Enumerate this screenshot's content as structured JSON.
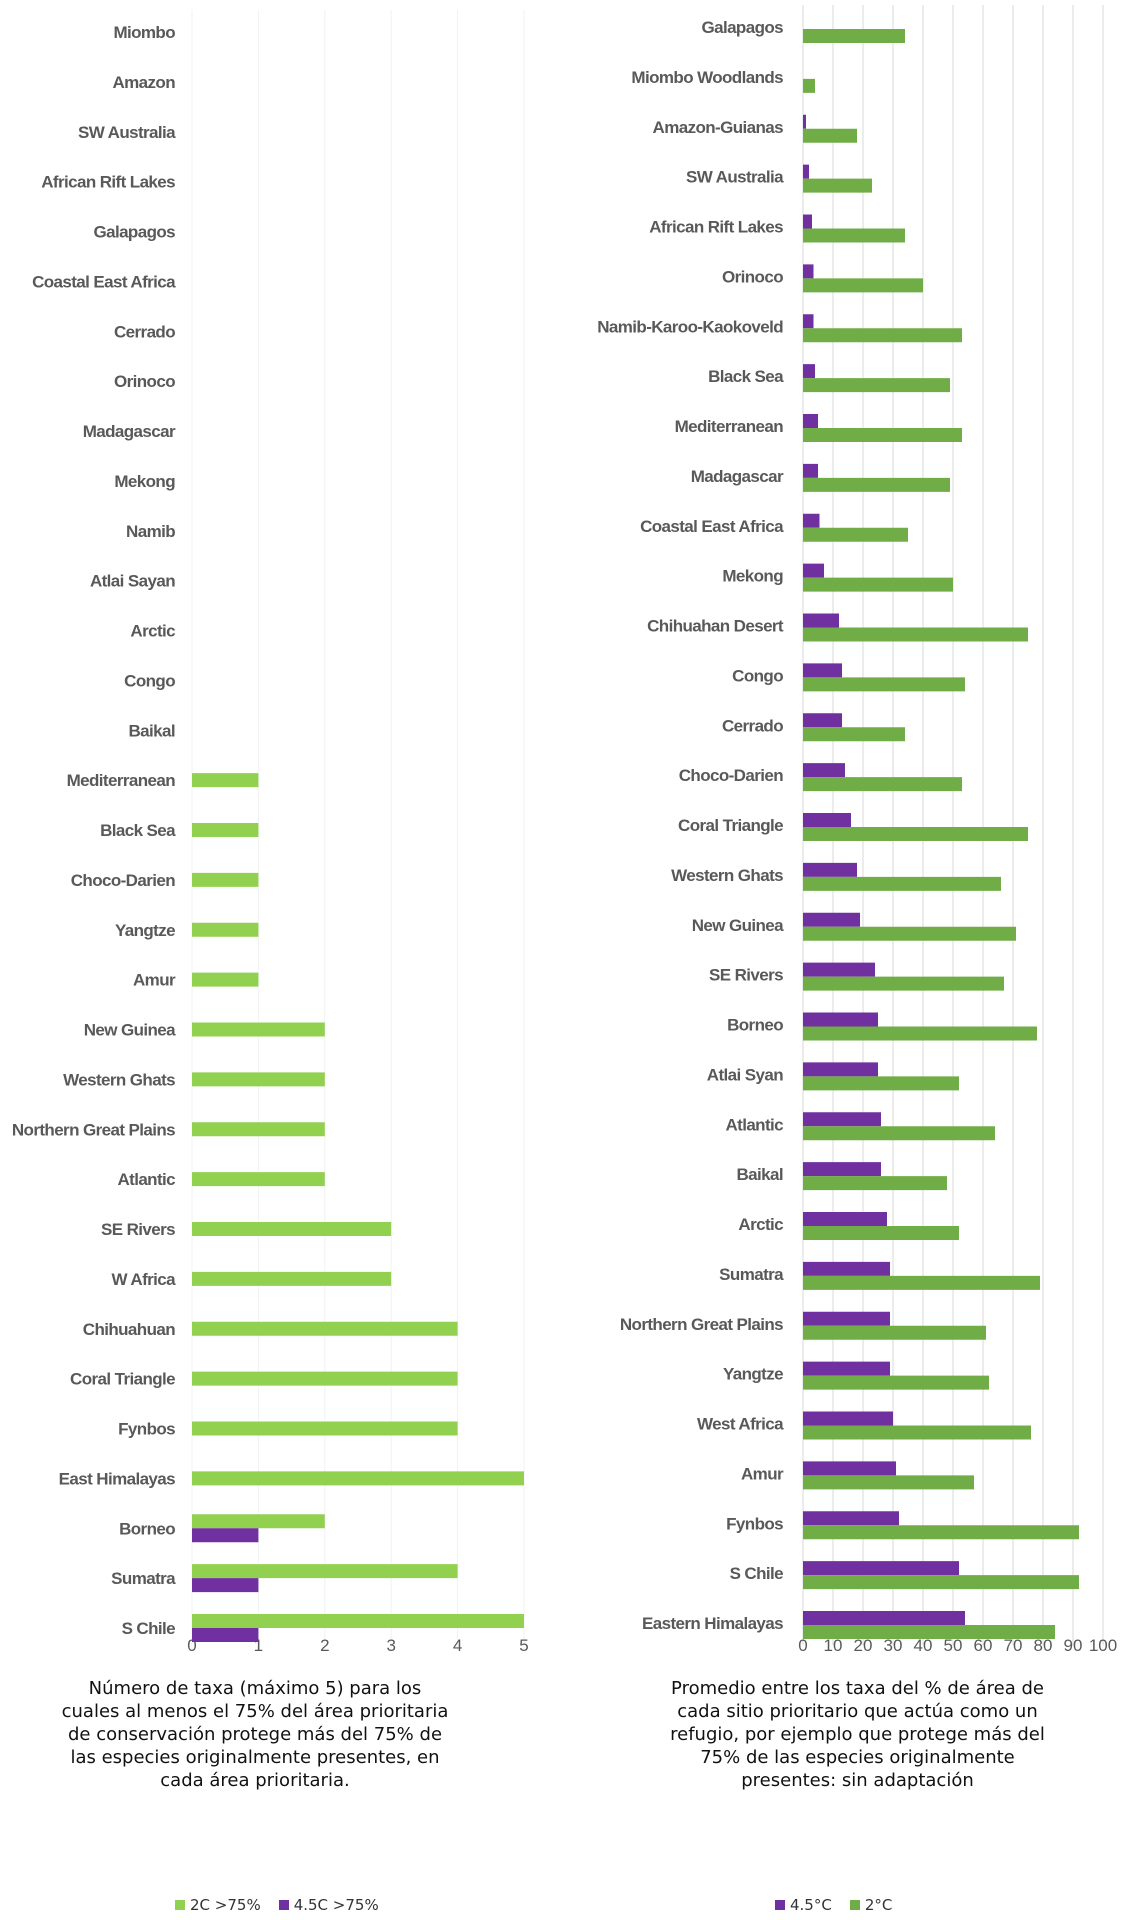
{
  "chart_data": [
    {
      "type": "bar",
      "orientation": "horizontal",
      "categories": [
        "Miombo",
        "Amazon",
        "SW Australia",
        "African Rift Lakes",
        "Galapagos",
        "Coastal East Africa",
        "Cerrado",
        "Orinoco",
        "Madagascar",
        "Mekong",
        "Namib",
        "Atlai Sayan",
        "Arctic",
        "Congo",
        "Baikal",
        "Mediterranean",
        "Black Sea",
        "Choco-Darien",
        "Yangtze",
        "Amur",
        "New Guinea",
        "Western Ghats",
        "Northern Great Plains",
        "Atlantic",
        "SE Rivers",
        "W Africa",
        "Chihuahuan",
        "Coral Triangle",
        "Fynbos",
        "East Himalayas",
        "Borneo",
        "Sumatra",
        "S Chile"
      ],
      "series": [
        {
          "name": "2C >75%",
          "color": "#92d050",
          "values": [
            0,
            0,
            0,
            0,
            0,
            0,
            0,
            0,
            0,
            0,
            0,
            0,
            0,
            0,
            0,
            1,
            1,
            1,
            1,
            1,
            2,
            2,
            2,
            2,
            3,
            3,
            4,
            4,
            4,
            5,
            2,
            4,
            5
          ]
        },
        {
          "name": "4.5C >75%",
          "color": "#7030a0",
          "values": [
            0,
            0,
            0,
            0,
            0,
            0,
            0,
            0,
            0,
            0,
            0,
            0,
            0,
            0,
            0,
            0,
            0,
            0,
            0,
            0,
            0,
            0,
            0,
            0,
            0,
            0,
            0,
            0,
            0,
            0,
            1,
            1,
            1
          ]
        }
      ],
      "xlim": [
        0,
        5
      ],
      "xticks": [
        "0",
        "1",
        "2",
        "3",
        "4",
        "5"
      ],
      "xlabel": "Número de taxa (máximo 5) para los cuales al menos el 75% del área prioritaria de conservación protege más del 75% de las especies originalmente presentes, en cada área prioritaria.",
      "legend": "bottom"
    },
    {
      "type": "bar",
      "orientation": "horizontal",
      "categories": [
        "Galapagos",
        "Miombo Woodlands",
        "Amazon-Guianas",
        "SW Australia",
        "African Rift Lakes",
        "Orinoco",
        "Namib-Karoo-Kaokoveld",
        "Black Sea",
        "Mediterranean",
        "Madagascar",
        "Coastal East Africa",
        "Mekong",
        "Chihuahan Desert",
        "Congo",
        "Cerrado",
        "Choco-Darien",
        "Coral Triangle",
        "Western Ghats",
        "New Guinea",
        "SE Rivers",
        "Borneo",
        "Atlai Syan",
        "Atlantic",
        "Baikal",
        "Arctic",
        "Sumatra",
        "Northern Great Plains",
        "Yangtze",
        "West Africa",
        "Amur",
        "Fynbos",
        "S Chile",
        "Eastern Himalayas"
      ],
      "series": [
        {
          "name": "4.5°C",
          "color": "#7030a0",
          "values": [
            0,
            0,
            1,
            2,
            3,
            3.5,
            3.5,
            4,
            5,
            5,
            5.5,
            7,
            12,
            13,
            13,
            14,
            16,
            18,
            19,
            24,
            25,
            25,
            26,
            26,
            28,
            29,
            29,
            29,
            30,
            31,
            32,
            52,
            54
          ]
        },
        {
          "name": "2°C",
          "color": "#70ad47",
          "values": [
            34,
            4,
            18,
            23,
            34,
            40,
            53,
            49,
            53,
            49,
            35,
            50,
            75,
            54,
            34,
            53,
            75,
            66,
            71,
            67,
            78,
            52,
            64,
            48,
            52,
            79,
            61,
            62,
            76,
            57,
            92,
            92,
            84
          ]
        }
      ],
      "xlim": [
        0,
        100
      ],
      "xticks": [
        "0",
        "10",
        "20",
        "30",
        "40",
        "50",
        "60",
        "70",
        "80",
        "90",
        "100"
      ],
      "grid": true,
      "xlabel": "Promedio entre los taxa del % de área de cada sitio prioritario que actúa como un refugio, por ejemplo que protege más del 75% de las especies originalmente presentes: sin adaptación",
      "legend": "bottom"
    }
  ]
}
